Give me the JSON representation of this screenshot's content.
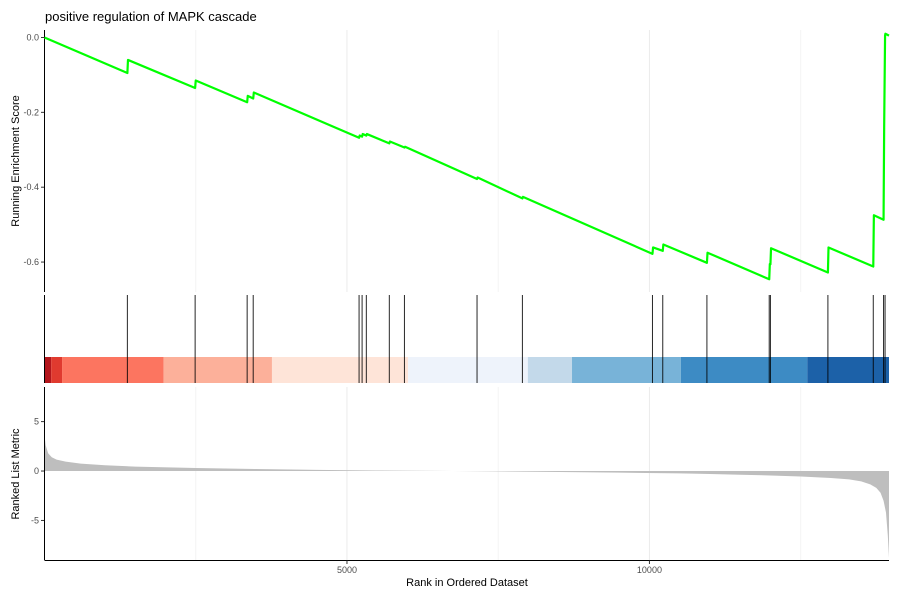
{
  "chart_data": {
    "type": "line",
    "title": "positive regulation of MAPK cascade",
    "xlabel": "Rank in Ordered Dataset",
    "xlim": [
      0,
      13960
    ],
    "x_ticks": [
      5000,
      10000
    ],
    "x_tick_labels": [
      "5000",
      "10000"
    ],
    "grid": true,
    "panels": {
      "enrichment": {
        "ylabel": "Running Enrichment Score",
        "ylim": [
          -0.68,
          0.02
        ],
        "y_ticks": [
          0.0,
          -0.2,
          -0.4,
          -0.6
        ],
        "y_tick_labels": [
          "0.0",
          "-0.2",
          "-0.4",
          "-0.6"
        ],
        "line_color": "#00ff00",
        "series": [
          {
            "x": [
              0,
              1370,
              1380,
              2490,
              2500,
              3350,
              3360,
              3450,
              3460,
              5200,
              5210,
              5250,
              5260,
              5320,
              5330,
              5700,
              5710,
              5950,
              5960,
              7150,
              7160,
              7900,
              7910,
              10050,
              10060,
              10220,
              10230,
              10950,
              10960,
              11980,
              11990,
              12000,
              12010,
              12950,
              12960,
              13700,
              13710,
              13870,
              13880,
              13895,
              13900,
              13960
            ],
            "y": [
              0.0,
              -0.095,
              -0.06,
              -0.135,
              -0.115,
              -0.173,
              -0.156,
              -0.163,
              -0.147,
              -0.268,
              -0.262,
              -0.265,
              -0.258,
              -0.262,
              -0.258,
              -0.283,
              -0.278,
              -0.294,
              -0.292,
              -0.378,
              -0.374,
              -0.43,
              -0.426,
              -0.578,
              -0.561,
              -0.57,
              -0.553,
              -0.602,
              -0.575,
              -0.646,
              -0.605,
              -0.606,
              -0.563,
              -0.628,
              -0.561,
              -0.612,
              -0.475,
              -0.487,
              -0.24,
              0.005,
              0.01,
              0.005
            ]
          }
        ]
      },
      "hits": {
        "positions": [
          1370,
          2490,
          3350,
          3450,
          5200,
          5250,
          5320,
          5700,
          5950,
          7150,
          7900,
          10050,
          10220,
          10950,
          11980,
          12000,
          12950,
          13700,
          13870,
          13895
        ],
        "color_bands": [
          {
            "from": 0,
            "to": 110,
            "color": "#b3161c"
          },
          {
            "from": 110,
            "to": 290,
            "color": "#e03a2f"
          },
          {
            "from": 290,
            "to": 1970,
            "color": "#fc7560"
          },
          {
            "from": 1970,
            "to": 3760,
            "color": "#fcb09a"
          },
          {
            "from": 3760,
            "to": 6010,
            "color": "#fee4d8"
          },
          {
            "from": 6010,
            "to": 7990,
            "color": "#eef3fb"
          },
          {
            "from": 7990,
            "to": 8720,
            "color": "#c3d9ea"
          },
          {
            "from": 8720,
            "to": 10520,
            "color": "#78b3d8"
          },
          {
            "from": 10520,
            "to": 12610,
            "color": "#3d8bc4"
          },
          {
            "from": 12610,
            "to": 13960,
            "color": "#1c61a8"
          }
        ]
      },
      "ranked": {
        "ylabel": "Ranked List Metric",
        "ylim": [
          -9.0,
          8.5
        ],
        "y_ticks": [
          5,
          0,
          -5
        ],
        "y_tick_labels": [
          "5",
          "0",
          "-5"
        ],
        "fill_color": "#bebebe",
        "x": [
          0,
          20,
          60,
          120,
          200,
          350,
          600,
          1000,
          1500,
          2500,
          3500,
          4500,
          5500,
          6500,
          7000,
          7500,
          8500,
          9500,
          10500,
          11000,
          11500,
          12000,
          12500,
          13000,
          13300,
          13500,
          13650,
          13750,
          13820,
          13870,
          13910,
          13940,
          13960
        ],
        "y": [
          3.6,
          2.6,
          1.8,
          1.4,
          1.15,
          0.95,
          0.75,
          0.58,
          0.45,
          0.3,
          0.2,
          0.12,
          0.05,
          0.01,
          -0.01,
          -0.04,
          -0.1,
          -0.16,
          -0.24,
          -0.3,
          -0.37,
          -0.45,
          -0.56,
          -0.7,
          -0.85,
          -1.05,
          -1.35,
          -1.7,
          -2.2,
          -3.0,
          -4.2,
          -6.5,
          -8.8
        ]
      }
    }
  }
}
